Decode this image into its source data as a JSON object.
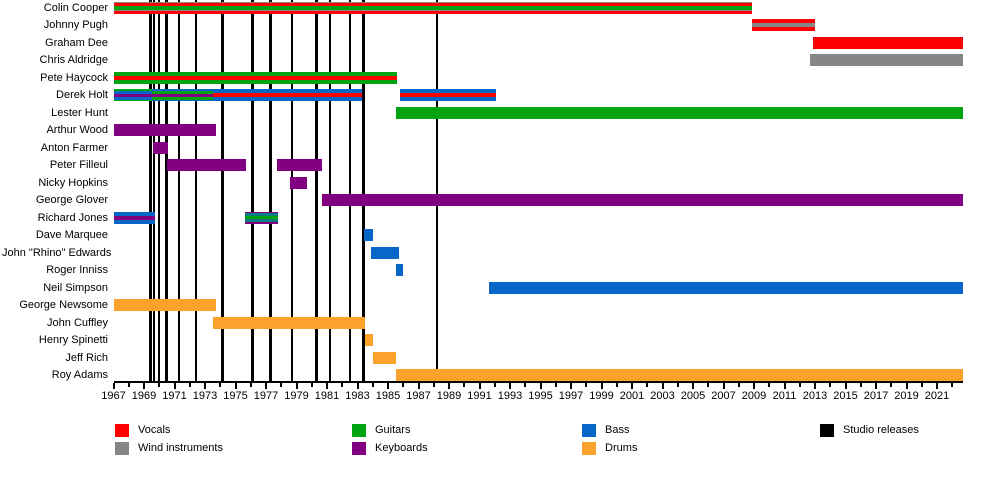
{
  "chart_data": {
    "type": "timeline",
    "description": "Band members and roles over time with studio release markers",
    "x_axis": {
      "start": 1967,
      "end": 2022.7,
      "tick_labels": [
        1967,
        1969,
        1971,
        1973,
        1975,
        1977,
        1979,
        1981,
        1983,
        1985,
        1987,
        1989,
        1991,
        1993,
        1995,
        1997,
        1999,
        2001,
        2003,
        2005,
        2007,
        2009,
        2011,
        2013,
        2015,
        2017,
        2019,
        2021
      ],
      "minor_tick_interval": 1
    },
    "colors": {
      "red": "#fe0000",
      "green": "#00a413",
      "blue": "#0667c8",
      "purple": "#800080",
      "orange": "#faa22c",
      "gray": "#868686",
      "teal": "#0a7b7e",
      "black": "#000000"
    },
    "members": [
      {
        "name": "Colin Cooper",
        "bars": [
          {
            "start": 1967,
            "end": 2008.9,
            "stripes": [
              [
                "gray",
                1
              ],
              [
                "red",
                3
              ],
              [
                "green",
                4
              ],
              [
                "gray",
                1
              ],
              [
                "red",
                3
              ]
            ]
          }
        ]
      },
      {
        "name": "Johnny Pugh",
        "bars": [
          {
            "start": 2008.9,
            "end": 2013.0,
            "stripes": [
              [
                "red",
                4
              ],
              [
                "gray",
                4
              ],
              [
                "red",
                4
              ]
            ]
          }
        ]
      },
      {
        "name": "Graham Dee",
        "bars": [
          {
            "start": 2012.9,
            "end": 2022.7,
            "stripes": [
              [
                "red",
                12
              ]
            ]
          }
        ]
      },
      {
        "name": "Chris Aldridge",
        "bars": [
          {
            "start": 2012.7,
            "end": 2022.7,
            "stripes": [
              [
                "gray",
                12
              ]
            ]
          }
        ]
      },
      {
        "name": "Pete Haycock",
        "bars": [
          {
            "start": 1967,
            "end": 1985.6,
            "stripes": [
              [
                "green",
                4
              ],
              [
                "red",
                4
              ],
              [
                "green",
                4
              ]
            ]
          }
        ]
      },
      {
        "name": "Derek Holt",
        "bars": [
          {
            "start": 1967,
            "end": 1969.5,
            "stripes": [
              [
                "green",
                1.5
              ],
              [
                "blue",
                3
              ],
              [
                "purple",
                3
              ],
              [
                "blue",
                3
              ],
              [
                "green",
                1.5
              ]
            ]
          },
          {
            "start": 1969.5,
            "end": 1973.5,
            "stripes": [
              [
                "blue",
                1.5
              ],
              [
                "green",
                3
              ],
              [
                "purple",
                3
              ],
              [
                "green",
                3
              ],
              [
                "blue",
                1.5
              ]
            ]
          },
          {
            "start": 1973.5,
            "end": 1983.3,
            "stripes": [
              [
                "blue",
                4
              ],
              [
                "red",
                4
              ],
              [
                "blue",
                4
              ]
            ]
          },
          {
            "start": 1985.8,
            "end": 1992.1,
            "stripes": [
              [
                "blue",
                4
              ],
              [
                "red",
                4
              ],
              [
                "blue",
                4
              ]
            ]
          }
        ]
      },
      {
        "name": "Lester Hunt",
        "bars": [
          {
            "start": 1985.5,
            "end": 2022.7,
            "stripes": [
              [
                "green",
                12
              ]
            ]
          }
        ]
      },
      {
        "name": "Arthur Wood",
        "bars": [
          {
            "start": 1967,
            "end": 1973.7,
            "stripes": [
              [
                "purple",
                12
              ]
            ]
          }
        ]
      },
      {
        "name": "Anton Farmer",
        "bars": [
          {
            "start": 1969.6,
            "end": 1970.6,
            "stripes": [
              [
                "purple",
                12
              ]
            ]
          }
        ]
      },
      {
        "name": "Peter Filleul",
        "bars": [
          {
            "start": 1970.5,
            "end": 1975.7,
            "stripes": [
              [
                "purple",
                12
              ]
            ]
          },
          {
            "start": 1977.7,
            "end": 1980.7,
            "stripes": [
              [
                "purple",
                12
              ]
            ]
          }
        ]
      },
      {
        "name": "Nicky Hopkins",
        "bars": [
          {
            "start": 1978.6,
            "end": 1979.7,
            "stripes": [
              [
                "purple",
                12
              ]
            ]
          }
        ]
      },
      {
        "name": "George Glover",
        "bars": [
          {
            "start": 1980.7,
            "end": 2022.7,
            "stripes": [
              [
                "purple",
                12
              ]
            ]
          }
        ]
      },
      {
        "name": "Richard Jones",
        "bars": [
          {
            "start": 1967,
            "end": 1969.7,
            "stripes": [
              [
                "blue",
                4
              ],
              [
                "purple",
                4
              ],
              [
                "blue",
                4
              ]
            ]
          },
          {
            "start": 1975.6,
            "end": 1977.8,
            "stripes": [
              [
                "purple",
                1.5
              ],
              [
                "teal",
                3
              ],
              [
                "green",
                3
              ],
              [
                "teal",
                3
              ],
              [
                "purple",
                1.5
              ]
            ]
          }
        ]
      },
      {
        "name": "Dave Marquee",
        "bars": [
          {
            "start": 1983.4,
            "end": 1984.0,
            "stripes": [
              [
                "blue",
                12
              ]
            ]
          }
        ]
      },
      {
        "name": "John \"Rhino\" Edwards",
        "bars": [
          {
            "start": 1983.9,
            "end": 1985.7,
            "stripes": [
              [
                "blue",
                12
              ]
            ]
          }
        ]
      },
      {
        "name": "Roger Inniss",
        "bars": [
          {
            "start": 1985.5,
            "end": 1986.0,
            "stripes": [
              [
                "blue",
                12
              ]
            ]
          }
        ]
      },
      {
        "name": "Neil Simpson",
        "bars": [
          {
            "start": 1991.6,
            "end": 2022.7,
            "stripes": [
              [
                "blue",
                12
              ]
            ]
          }
        ]
      },
      {
        "name": "George Newsome",
        "bars": [
          {
            "start": 1967,
            "end": 1973.7,
            "stripes": [
              [
                "orange",
                12
              ]
            ]
          }
        ]
      },
      {
        "name": "John Cuffley",
        "bars": [
          {
            "start": 1973.5,
            "end": 1983.5,
            "stripes": [
              [
                "orange",
                12
              ]
            ]
          }
        ]
      },
      {
        "name": "Henry Spinetti",
        "bars": [
          {
            "start": 1983.5,
            "end": 1984.0,
            "stripes": [
              [
                "orange",
                12
              ]
            ]
          }
        ]
      },
      {
        "name": "Jeff Rich",
        "bars": [
          {
            "start": 1984.0,
            "end": 1985.5,
            "stripes": [
              [
                "orange",
                12
              ]
            ]
          }
        ]
      },
      {
        "name": "Roy Adams",
        "bars": [
          {
            "start": 1985.5,
            "end": 2022.7,
            "stripes": [
              [
                "orange",
                12
              ]
            ]
          }
        ]
      }
    ],
    "studio_releases": [
      1969.43,
      1969.66,
      1969.98,
      1970.48,
      1971.3,
      1972.4,
      1974.15,
      1976.1,
      1977.3,
      1978.7,
      1980.3,
      1981.2,
      1982.5,
      1983.4,
      1988.2
    ],
    "legend": {
      "columns": [
        {
          "items": [
            {
              "color": "red",
              "label": "Vocals"
            },
            {
              "color": "gray",
              "label": "Wind instruments"
            }
          ]
        },
        {
          "items": [
            {
              "color": "green",
              "label": "Guitars"
            },
            {
              "color": "purple",
              "label": "Keyboards"
            }
          ]
        },
        {
          "items": [
            {
              "color": "blue",
              "label": "Bass"
            },
            {
              "color": "orange",
              "label": "Drums"
            }
          ]
        },
        {
          "items": [
            {
              "color": "black",
              "label": "Studio releases"
            }
          ]
        }
      ]
    }
  }
}
